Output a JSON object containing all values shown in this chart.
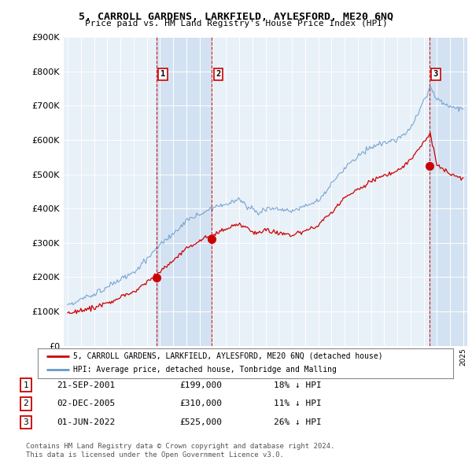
{
  "title": "5, CARROLL GARDENS, LARKFIELD, AYLESFORD, ME20 6NQ",
  "subtitle": "Price paid vs. HM Land Registry's House Price Index (HPI)",
  "legend_line1": "5, CARROLL GARDENS, LARKFIELD, AYLESFORD, ME20 6NQ (detached house)",
  "legend_line2": "HPI: Average price, detached house, Tonbridge and Malling",
  "footnote": "Contains HM Land Registry data © Crown copyright and database right 2024.\nThis data is licensed under the Open Government Licence v3.0.",
  "sale_color": "#cc0000",
  "hpi_color": "#6699cc",
  "shade_color": "#dce9f5",
  "background_color": "#e8f0f8",
  "sale_points": [
    {
      "date_num": 2001.72,
      "price": 199000,
      "label": "1"
    },
    {
      "date_num": 2005.92,
      "price": 310000,
      "label": "2"
    },
    {
      "date_num": 2022.42,
      "price": 525000,
      "label": "3"
    }
  ],
  "table_rows": [
    {
      "num": "1",
      "date": "21-SEP-2001",
      "price": "£199,000",
      "pct": "18% ↓ HPI"
    },
    {
      "num": "2",
      "date": "02-DEC-2005",
      "price": "£310,000",
      "pct": "11% ↓ HPI"
    },
    {
      "num": "3",
      "date": "01-JUN-2022",
      "price": "£525,000",
      "pct": "26% ↓ HPI"
    }
  ],
  "ylim": [
    0,
    900000
  ],
  "xlim": [
    1994.7,
    2025.3
  ]
}
